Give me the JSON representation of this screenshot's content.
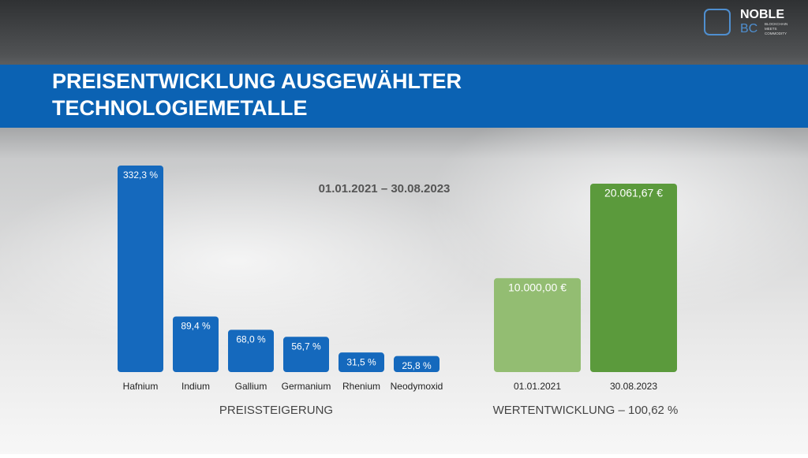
{
  "header": {
    "title_line1": "PREISENTWICKLUNG AUSGEWÄHLTER",
    "title_line2": "TECHNOLOGIEMETALLE",
    "period": "01.01.2021 – 30.08.2023"
  },
  "logo": {
    "name": "NOBLE",
    "short": "BC",
    "tagline1": "BLOCKCHAIN",
    "tagline2": "MEETS",
    "tagline3": "COMMODITY"
  },
  "chart_data": [
    {
      "type": "bar",
      "xlabel": "PREISSTEIGERUNG",
      "categories": [
        "Hafnium",
        "Indium",
        "Gallium",
        "Germanium",
        "Rhenium",
        "Neodymoxid"
      ],
      "values": [
        332.3,
        89.4,
        68.0,
        56.7,
        31.5,
        25.8
      ],
      "value_labels": [
        "332,3 %",
        "89,4 %",
        "68,0 %",
        "56,7 %",
        "31,5 %",
        "25,8 %"
      ],
      "color": "#1569bd"
    },
    {
      "type": "bar",
      "xlabel": "WERTENTWICKLUNG – 100,62 %",
      "categories": [
        "01.01.2021",
        "30.08.2023"
      ],
      "values": [
        10000,
        20061.67
      ],
      "value_labels": [
        "10.000,00 €",
        "20.061,67 €"
      ],
      "colors": [
        "#93bd72",
        "#5b9a3c"
      ]
    }
  ]
}
